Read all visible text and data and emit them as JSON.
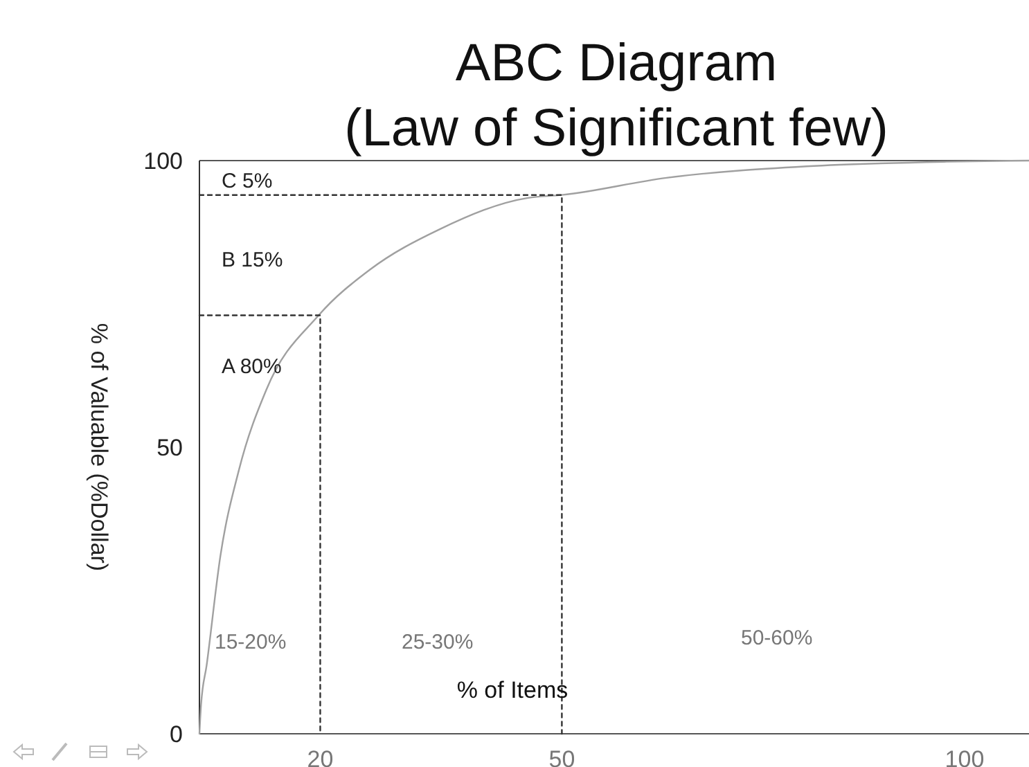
{
  "chart_data": {
    "type": "line",
    "title": "ABC Diagram",
    "subtitle": "(Law of Significant few)",
    "xlabel": "% of Items",
    "ylabel": "% of Valuable (%Dollar)",
    "xlim": [
      5,
      108
    ],
    "ylim": [
      0,
      100
    ],
    "xticks": [
      20,
      50,
      100
    ],
    "yticks": [
      0,
      50,
      100
    ],
    "grid": false,
    "marker": "none",
    "series": [
      {
        "color": "#a0a0a0",
        "line_style": "solid",
        "x": [
          5,
          5.2,
          5.9,
          7.6,
          9.9,
          13.3,
          19.8,
          26.2,
          34.8,
          45.8,
          50,
          63,
          80.4,
          97.7,
          108
        ],
        "values": [
          0,
          5,
          12,
          31,
          46,
          60,
          73,
          81,
          88,
          93.5,
          94,
          97,
          99,
          99.8,
          100
        ]
      },
      {
        "color": "#333333",
        "line_style": "dashed",
        "x": [
          5,
          20,
          20
        ],
        "values": [
          73,
          73,
          0
        ]
      },
      {
        "color": "#333333",
        "line_style": "dashed",
        "x": [
          5,
          50,
          50
        ],
        "values": [
          94,
          94,
          0
        ]
      }
    ],
    "annotations": [
      "C 5%",
      "B 15%",
      "A 80%",
      "15-20%",
      "25-30%",
      "50-60%"
    ]
  }
}
